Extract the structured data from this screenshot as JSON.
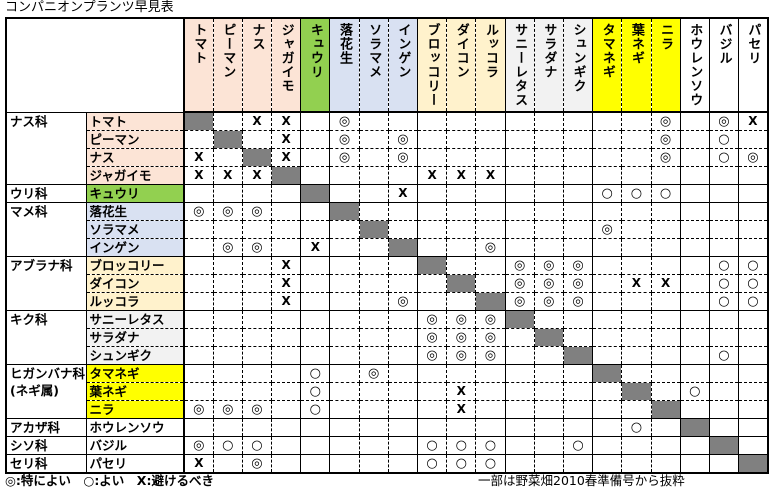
{
  "title": "コンパニオンプランツ早見表",
  "colors": {
    "solanaceae": "#fce4d6",
    "cucurbit": "#92d050",
    "legume": "#d9e1f2",
    "brassica": "#fff2cc",
    "aster": "#f2f2f2",
    "allium": "#ffff00",
    "other": "#ffffff",
    "diagonal": "#808080"
  },
  "columns": [
    "トマト",
    "ピーマン",
    "ナス",
    "ジャガイモ",
    "キュウリ",
    "落花生",
    "ソラマメ",
    "インゲン",
    "ブロッコリー",
    "ダイコン",
    "ルッコラ",
    "サニーレタス",
    "サラダナ",
    "シュンギク",
    "タマネギ",
    "葉ネギ",
    "ニラ",
    "ホウレンソウ",
    "バジル",
    "パセリ"
  ],
  "families": [
    {
      "label": [
        "ナス科"
      ],
      "color": "solanaceae",
      "rows": [
        {
          "name": "トマト",
          "marks": [
            "",
            "",
            "X",
            "X",
            "",
            "◎",
            "",
            "",
            "",
            "",
            "",
            "",
            "",
            "",
            "",
            "",
            "◎",
            "",
            "◎",
            "X"
          ]
        },
        {
          "name": "ピーマン",
          "marks": [
            "",
            "",
            "",
            "X",
            "",
            "◎",
            "",
            "◎",
            "",
            "",
            "",
            "",
            "",
            "",
            "",
            "",
            "◎",
            "",
            "○",
            ""
          ]
        },
        {
          "name": "ナス",
          "marks": [
            "X",
            "",
            "",
            "X",
            "",
            "◎",
            "",
            "◎",
            "",
            "",
            "",
            "",
            "",
            "",
            "",
            "",
            "◎",
            "",
            "○",
            "◎"
          ]
        },
        {
          "name": "ジャガイモ",
          "marks": [
            "X",
            "X",
            "X",
            "",
            "",
            "",
            "",
            "",
            "X",
            "X",
            "X",
            "",
            "",
            "",
            "",
            "",
            "",
            "",
            "",
            ""
          ]
        }
      ]
    },
    {
      "label": [
        "ウリ科"
      ],
      "color": "cucurbit",
      "rows": [
        {
          "name": "キュウリ",
          "marks": [
            "",
            "",
            "",
            "",
            "",
            "",
            "",
            "X",
            "",
            "",
            "",
            "",
            "",
            "",
            "○",
            "○",
            "○",
            "",
            "",
            ""
          ]
        }
      ]
    },
    {
      "label": [
        "マメ科"
      ],
      "color": "legume",
      "rows": [
        {
          "name": "落花生",
          "marks": [
            "◎",
            "◎",
            "◎",
            "",
            "",
            "",
            "",
            "",
            "",
            "",
            "",
            "",
            "",
            "",
            "",
            "",
            "",
            "",
            "",
            ""
          ]
        },
        {
          "name": "ソラマメ",
          "marks": [
            "",
            "",
            "",
            "",
            "",
            "",
            "",
            "",
            "",
            "",
            "",
            "",
            "",
            "",
            "◎",
            "",
            "",
            "",
            "",
            ""
          ]
        },
        {
          "name": "インゲン",
          "marks": [
            "",
            "◎",
            "◎",
            "",
            "X",
            "",
            "",
            "",
            "",
            "",
            "◎",
            "",
            "",
            "",
            "",
            "",
            "",
            "",
            "",
            ""
          ]
        }
      ]
    },
    {
      "label": [
        "アブラナ科"
      ],
      "color": "brassica",
      "rows": [
        {
          "name": "ブロッコリー",
          "marks": [
            "",
            "",
            "",
            "X",
            "",
            "",
            "",
            "",
            "",
            "",
            "",
            "◎",
            "◎",
            "◎",
            "",
            "",
            "",
            "",
            "○",
            "○"
          ]
        },
        {
          "name": "ダイコン",
          "marks": [
            "",
            "",
            "",
            "X",
            "",
            "",
            "",
            "",
            "",
            "",
            "",
            "◎",
            "◎",
            "◎",
            "",
            "X",
            "X",
            "",
            "○",
            "○"
          ]
        },
        {
          "name": "ルッコラ",
          "marks": [
            "",
            "",
            "",
            "X",
            "",
            "",
            "",
            "◎",
            "",
            "",
            "",
            "◎",
            "◎",
            "◎",
            "",
            "",
            "",
            "",
            "○",
            "○"
          ]
        }
      ]
    },
    {
      "label": [
        "キク科"
      ],
      "color": "aster",
      "rows": [
        {
          "name": "サニーレタス",
          "marks": [
            "",
            "",
            "",
            "",
            "",
            "",
            "",
            "",
            "◎",
            "◎",
            "◎",
            "",
            "",
            "",
            "",
            "",
            "",
            "",
            "",
            ""
          ]
        },
        {
          "name": "サラダナ",
          "marks": [
            "",
            "",
            "",
            "",
            "",
            "",
            "",
            "",
            "◎",
            "◎",
            "◎",
            "",
            "",
            "",
            "",
            "",
            "",
            "",
            "",
            ""
          ]
        },
        {
          "name": "シュンギク",
          "marks": [
            "",
            "",
            "",
            "",
            "",
            "",
            "",
            "",
            "◎",
            "◎",
            "◎",
            "",
            "",
            "",
            "",
            "",
            "",
            "",
            "○",
            ""
          ]
        }
      ]
    },
    {
      "label": [
        "ヒガンバナ科",
        "(ネギ属)"
      ],
      "color": "allium",
      "rows": [
        {
          "name": "タマネギ",
          "marks": [
            "",
            "",
            "",
            "",
            "○",
            "",
            "◎",
            "",
            "",
            "",
            "",
            "",
            "",
            "",
            "",
            "",
            "",
            "",
            "",
            ""
          ]
        },
        {
          "name": "葉ネギ",
          "marks": [
            "",
            "",
            "",
            "",
            "○",
            "",
            "",
            "",
            "",
            "X",
            "",
            "",
            "",
            "",
            "",
            "",
            "",
            "○",
            "",
            ""
          ]
        },
        {
          "name": "ニラ",
          "marks": [
            "◎",
            "◎",
            "◎",
            "",
            "○",
            "",
            "",
            "",
            "",
            "X",
            "",
            "",
            "",
            "",
            "",
            "",
            "",
            "",
            "",
            ""
          ]
        }
      ]
    },
    {
      "label": [
        "アカザ科"
      ],
      "color": "other",
      "rows": [
        {
          "name": "ホウレンソウ",
          "marks": [
            "",
            "",
            "",
            "",
            "",
            "",
            "",
            "",
            "",
            "",
            "",
            "",
            "",
            "",
            "",
            "○",
            "",
            "",
            "",
            ""
          ]
        }
      ]
    },
    {
      "label": [
        "シソ科"
      ],
      "color": "other",
      "rows": [
        {
          "name": "バジル",
          "marks": [
            "◎",
            "○",
            "○",
            "",
            "",
            "",
            "",
            "",
            "○",
            "○",
            "○",
            "",
            "",
            "○",
            "",
            "",
            "",
            "",
            "",
            ""
          ]
        }
      ]
    },
    {
      "label": [
        "セリ科"
      ],
      "color": "other",
      "rows": [
        {
          "name": "パセリ",
          "marks": [
            "X",
            "",
            "◎",
            "",
            "",
            "",
            "",
            "",
            "○",
            "○",
            "○",
            "",
            "",
            "",
            "",
            "",
            "",
            "",
            "",
            ""
          ]
        }
      ]
    }
  ],
  "legend": "◎:特によい　○:よい　X:避けるべき",
  "note": "一部は野菜畑2010春準備号から抜粋"
}
